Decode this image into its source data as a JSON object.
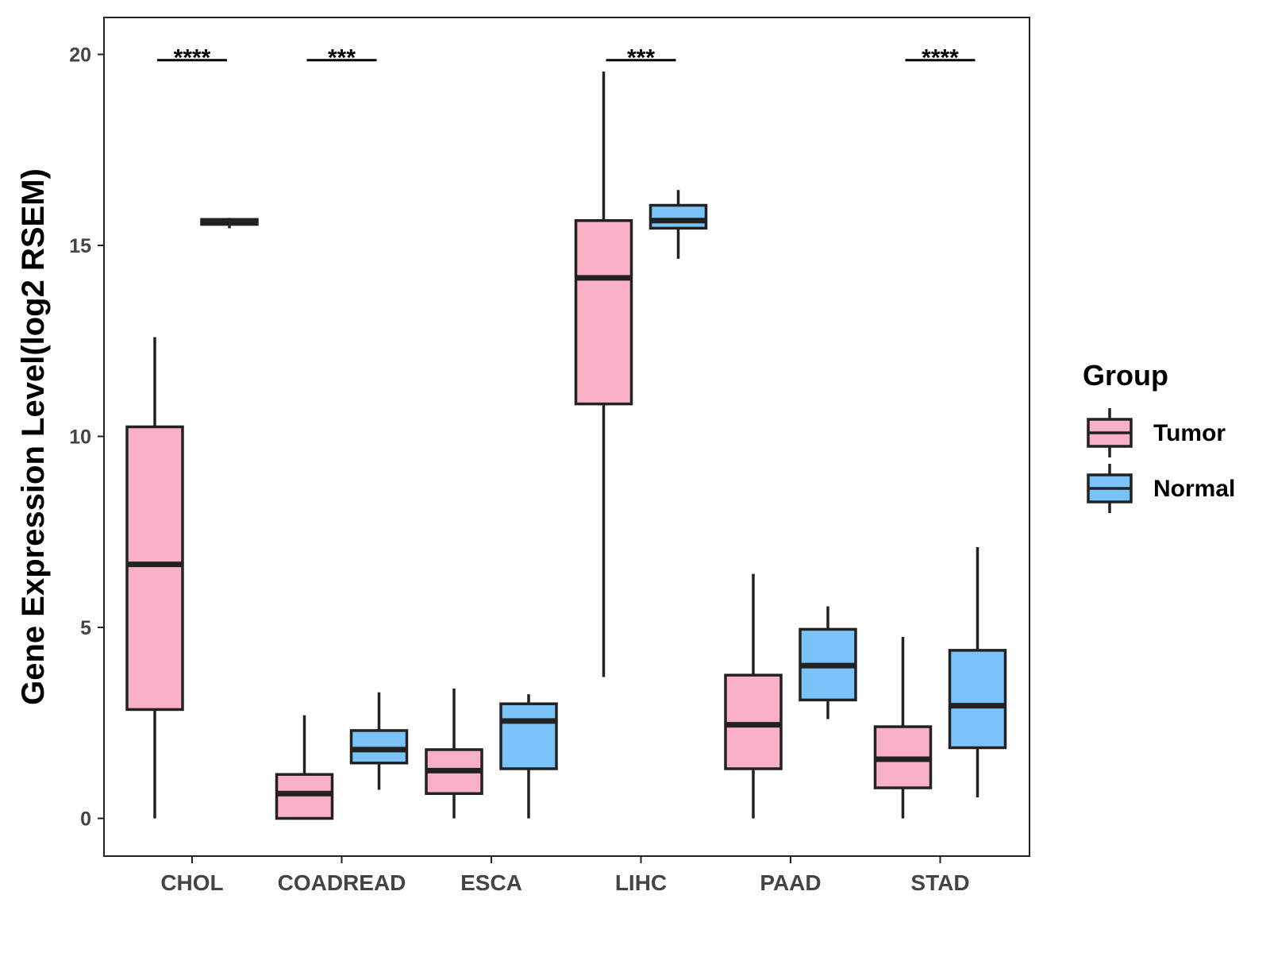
{
  "chart_data": {
    "type": "boxplot",
    "ylabel": "Gene Expression Level(log2 RSEM)",
    "xlabel": "",
    "ylim": [
      -1,
      21
    ],
    "yticks": [
      0,
      5,
      10,
      15,
      20
    ],
    "categories": [
      "CHOL",
      "COADREAD",
      "ESCA",
      "LIHC",
      "PAAD",
      "STAD"
    ],
    "legend": {
      "title": "Group",
      "position": "right",
      "entries": [
        {
          "name": "Tumor",
          "color": "#FBB1C5"
        },
        {
          "name": "Normal",
          "color": "#7AC3F8"
        }
      ]
    },
    "series": [
      {
        "name": "Tumor",
        "color": "#FBB1C5",
        "boxes": [
          {
            "min": 0.0,
            "q1": 2.85,
            "median": 6.65,
            "q3": 10.25,
            "max": 12.6
          },
          {
            "min": 0.0,
            "q1": 0.0,
            "median": 0.65,
            "q3": 1.15,
            "max": 2.7
          },
          {
            "min": 0.0,
            "q1": 0.65,
            "median": 1.25,
            "q3": 1.8,
            "max": 3.4
          },
          {
            "min": 3.7,
            "q1": 10.85,
            "median": 14.15,
            "q3": 15.65,
            "max": 19.55
          },
          {
            "min": 0.0,
            "q1": 1.3,
            "median": 2.45,
            "q3": 3.75,
            "max": 6.4
          },
          {
            "min": 0.0,
            "q1": 0.8,
            "median": 1.55,
            "q3": 2.4,
            "max": 4.75
          }
        ]
      },
      {
        "name": "Normal",
        "color": "#7AC3F8",
        "boxes": [
          {
            "min": 15.45,
            "q1": 15.55,
            "median": 15.6,
            "q3": 15.68,
            "max": 15.72
          },
          {
            "min": 0.75,
            "q1": 1.45,
            "median": 1.8,
            "q3": 2.3,
            "max": 3.3
          },
          {
            "min": 0.0,
            "q1": 1.3,
            "median": 2.55,
            "q3": 3.0,
            "max": 3.25
          },
          {
            "min": 14.65,
            "q1": 15.45,
            "median": 15.65,
            "q3": 16.05,
            "max": 16.45
          },
          {
            "min": 2.6,
            "q1": 3.1,
            "median": 4.0,
            "q3": 4.95,
            "max": 5.55
          },
          {
            "min": 0.55,
            "q1": 1.85,
            "median": 2.95,
            "q3": 4.4,
            "max": 7.1
          }
        ]
      }
    ],
    "significance": [
      {
        "category": "CHOL",
        "label": "****"
      },
      {
        "category": "COADREAD",
        "label": "***"
      },
      {
        "category": "LIHC",
        "label": "***"
      },
      {
        "category": "STAD",
        "label": "****"
      }
    ]
  }
}
